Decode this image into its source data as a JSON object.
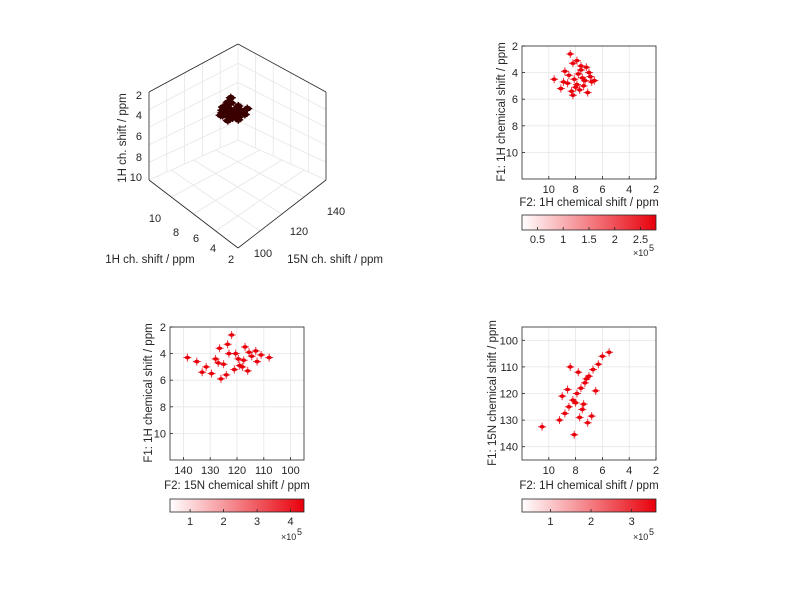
{
  "figure": {
    "cube": {
      "ylabel": "1H ch. shift / ppm",
      "xlabel": "1H ch. shift / ppm",
      "zlabel": "15N ch. shift / ppm",
      "yticks": [
        "2",
        "4",
        "6",
        "8",
        "10"
      ],
      "xticks": [
        "10",
        "8",
        "6",
        "4",
        "2"
      ],
      "zticks": [
        "100",
        "120",
        "140"
      ]
    },
    "colorbar_exponent_base": "×10",
    "colorbar_exponent_power": "5",
    "colors": {
      "peak": "#e8000b",
      "peak_dark": "#3a0000",
      "grid": "#e6e6e6",
      "axis": "#262626"
    }
  },
  "chart_data": [
    {
      "type": "scatter",
      "panel": "3d-cube",
      "xlabel": "1H ch. shift / ppm",
      "ylabel": "1H ch. shift / ppm",
      "zlabel": "15N ch. shift / ppm",
      "xlim": [
        2,
        11
      ],
      "ylim": [
        2,
        11
      ],
      "zlim": [
        95,
        145
      ],
      "grid": true
    },
    {
      "type": "scatter",
      "panel": "1H-1H",
      "xlabel": "F2: 1H chemical shift / ppm",
      "ylabel": "F1: 1H chemical shift / ppm",
      "xticks": [
        "10",
        "8",
        "6",
        "4",
        "2"
      ],
      "yticks": [
        "2",
        "4",
        "6",
        "8",
        "10"
      ],
      "xlim": [
        2,
        12
      ],
      "ylim": [
        2,
        12
      ],
      "x_reversed": true,
      "y_reversed": true,
      "grid": true,
      "x": [
        8.4,
        7.9,
        7.6,
        8.2,
        7.2,
        8.8,
        7.0,
        7.8,
        8.5,
        7.5,
        9.6,
        8.1,
        7.3,
        6.8,
        8.6,
        7.9,
        7.4,
        8.0,
        9.1,
        7.7,
        8.3,
        6.9,
        8.9,
        7.1,
        8.2,
        7.6,
        6.6
      ],
      "y": [
        2.6,
        3.1,
        3.5,
        3.3,
        3.6,
        3.9,
        4.0,
        4.1,
        4.2,
        4.4,
        4.5,
        4.5,
        4.6,
        4.7,
        4.8,
        4.9,
        5.0,
        5.1,
        5.2,
        5.3,
        5.4,
        4.3,
        4.7,
        5.5,
        5.7,
        3.8,
        4.6
      ],
      "colorbar": {
        "ticks": [
          "0.5",
          "1",
          "1.5",
          "2",
          "2.5"
        ],
        "tick_values": [
          0.5,
          1,
          1.5,
          2,
          2.5
        ],
        "range": [
          0.2,
          2.8
        ],
        "exponent": 5
      }
    },
    {
      "type": "scatter",
      "panel": "15N-1H",
      "xlabel": "F2: 15N chemical shift / ppm",
      "ylabel": "F1: 1H chemical shift / ppm",
      "xticks": [
        "140",
        "130",
        "120",
        "110",
        "100"
      ],
      "yticks": [
        "2",
        "4",
        "6",
        "8",
        "10"
      ],
      "xlim": [
        95,
        145
      ],
      "ylim": [
        2,
        12
      ],
      "x_reversed": true,
      "y_reversed": true,
      "grid": true,
      "x": [
        138.5,
        135.0,
        131.5,
        128.0,
        126.5,
        125.0,
        123.5,
        122.0,
        120.5,
        119.0,
        117.5,
        116.0,
        114.5,
        113.0,
        111.0,
        108.0,
        129.5,
        124.0,
        121.0,
        118.0,
        115.5,
        127.0,
        119.5,
        123.0,
        117.0,
        112.5,
        133.0,
        126.0
      ],
      "y": [
        4.3,
        4.6,
        5.0,
        4.4,
        3.6,
        4.8,
        3.3,
        2.6,
        4.0,
        4.9,
        4.5,
        5.3,
        4.2,
        3.8,
        4.1,
        4.3,
        5.5,
        5.6,
        5.2,
        5.0,
        3.9,
        4.7,
        4.4,
        4.0,
        3.5,
        4.6,
        5.4,
        5.9
      ],
      "colorbar": {
        "ticks": [
          "1",
          "2",
          "3",
          "4"
        ],
        "tick_values": [
          1,
          2,
          3,
          4
        ],
        "range": [
          0.4,
          4.4
        ],
        "exponent": 5
      }
    },
    {
      "type": "scatter",
      "panel": "1H-15N",
      "xlabel": "F2: 1H chemical shift / ppm",
      "ylabel": "F1: 15N chemical shift / ppm",
      "xticks": [
        "10",
        "8",
        "6",
        "4",
        "2"
      ],
      "yticks": [
        "100",
        "110",
        "120",
        "130",
        "140"
      ],
      "xlim": [
        2,
        12
      ],
      "ylim": [
        95,
        145
      ],
      "x_reversed": true,
      "y_reversed": false,
      "grid": true,
      "x": [
        10.5,
        9.2,
        8.8,
        8.5,
        8.2,
        7.9,
        7.6,
        7.3,
        7.0,
        6.7,
        6.3,
        6.0,
        5.5,
        8.4,
        7.8,
        7.2,
        9.0,
        8.0,
        7.5,
        6.8,
        8.6,
        7.4,
        6.5,
        8.1,
        7.7,
        7.1
      ],
      "y": [
        132.5,
        130.0,
        127.5,
        125.0,
        122.5,
        120.0,
        118.0,
        116.0,
        113.5,
        111.0,
        109.0,
        106.0,
        104.5,
        110.0,
        112.0,
        114.5,
        121.0,
        123.5,
        126.0,
        128.5,
        118.5,
        124.0,
        119.0,
        135.5,
        129.0,
        131.0
      ],
      "colorbar": {
        "ticks": [
          "1",
          "2",
          "3"
        ],
        "tick_values": [
          1,
          2,
          3
        ],
        "range": [
          0.3,
          3.6
        ],
        "exponent": 5
      }
    }
  ]
}
